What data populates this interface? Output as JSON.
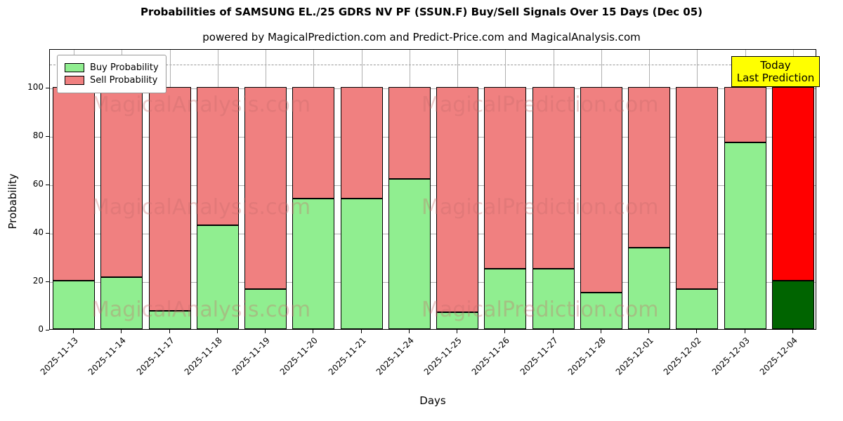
{
  "page": {
    "title": "Probabilities of SAMSUNG EL./25 GDRS NV PF (SSUN.F) Buy/Sell Signals Over 15 Days (Dec 05)",
    "subtitle": "powered by MagicalPrediction.com and Predict-Price.com and MagicalAnalysis.com"
  },
  "legend": {
    "buy_label": "Buy Probability",
    "sell_label": "Sell Probability"
  },
  "today_box": {
    "line1": "Today",
    "line2": "Last Prediction"
  },
  "axes": {
    "xlabel": "Days",
    "ylabel": "Probability"
  },
  "watermarks": {
    "left": "MagicalAnalysis.com",
    "right": "MagicalPrediction.com"
  },
  "colors": {
    "buy": "#90ee90",
    "sell": "#f08080",
    "today_buy": "#006400",
    "today_sell": "#ff0000",
    "today_box_bg": "#ffff00",
    "grid": "#b0b0b0"
  },
  "chart_data": {
    "type": "bar",
    "stacked": true,
    "title": "Probabilities of SAMSUNG EL./25 GDRS NV PF (SSUN.F) Buy/Sell Signals Over 15 Days (Dec 05)",
    "xlabel": "Days",
    "ylabel": "Probability",
    "ylim": [
      0,
      116
    ],
    "yticks": [
      0,
      20,
      40,
      60,
      80,
      100
    ],
    "dashed_guide_y": 110,
    "grid": true,
    "legend_position": "upper-left",
    "categories": [
      "2025-11-13",
      "2025-11-14",
      "2025-11-17",
      "2025-11-18",
      "2025-11-19",
      "2025-11-20",
      "2025-11-21",
      "2025-11-24",
      "2025-11-25",
      "2025-11-26",
      "2025-11-27",
      "2025-11-28",
      "2025-12-01",
      "2025-12-02",
      "2025-12-03",
      "2025-12-04"
    ],
    "series": [
      {
        "name": "Buy Probability",
        "values": [
          20,
          21.5,
          7.5,
          43,
          16.5,
          54,
          54,
          62,
          7,
          25,
          25,
          15,
          33.5,
          16.5,
          77,
          20
        ]
      },
      {
        "name": "Sell Probability",
        "values": [
          80,
          78.5,
          92.5,
          57,
          83.5,
          46,
          46,
          38,
          93,
          75,
          75,
          85,
          66.5,
          83.5,
          23,
          80
        ]
      }
    ],
    "today_index": 15
  }
}
